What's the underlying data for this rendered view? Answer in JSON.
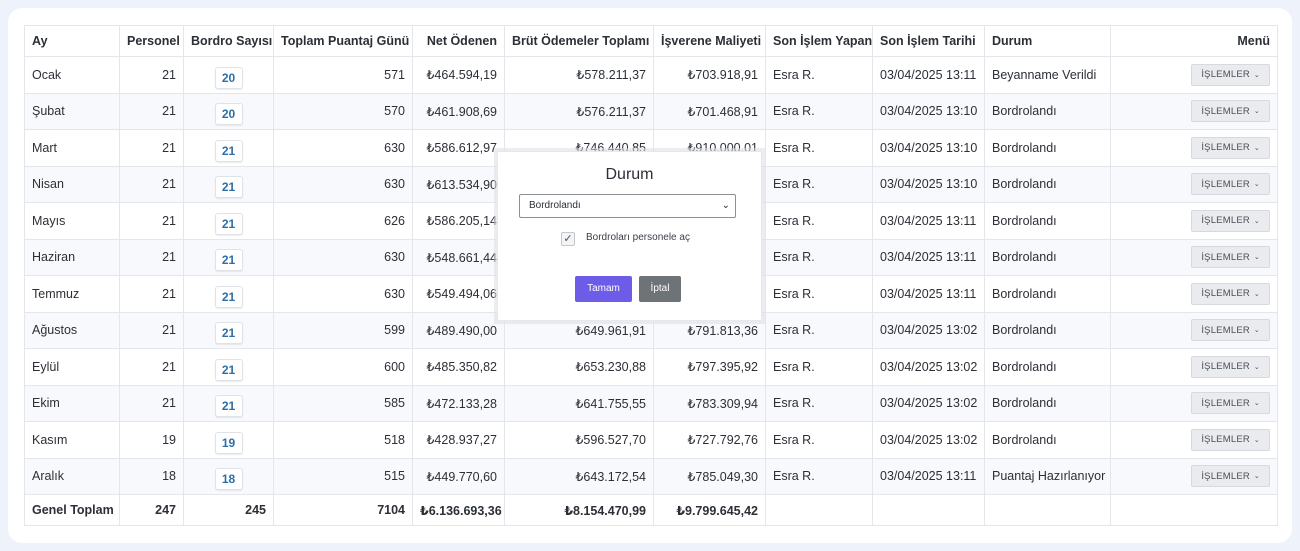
{
  "table": {
    "headers": {
      "month": "Ay",
      "staff": "Personel",
      "payroll_count": "Bordro Sayısı",
      "total_days": "Toplam Puantaj Günü",
      "net_paid": "Net Ödenen",
      "gross_total": "Brüt Ödemeler Toplamı",
      "employer_cost": "İşverene Maliyeti",
      "last_user": "Son İşlem Yapan",
      "last_date": "Son İşlem Tarihi",
      "status": "Durum",
      "menu": "Menü"
    },
    "rows": [
      {
        "month": "Ocak",
        "staff": "21",
        "payroll_count": "20",
        "total_days": "571",
        "net_paid": "₺464.594,19",
        "gross_total": "₺578.211,37",
        "employer_cost": "₺703.918,91",
        "last_user": "Esra R.",
        "last_date": "03/04/2025 13:11",
        "status": "Beyanname Verildi"
      },
      {
        "month": "Şubat",
        "staff": "21",
        "payroll_count": "20",
        "total_days": "570",
        "net_paid": "₺461.908,69",
        "gross_total": "₺576.211,37",
        "employer_cost": "₺701.468,91",
        "last_user": "Esra R.",
        "last_date": "03/04/2025 13:10",
        "status": "Bordrolandı"
      },
      {
        "month": "Mart",
        "staff": "21",
        "payroll_count": "21",
        "total_days": "630",
        "net_paid": "₺586.612,97",
        "gross_total": "₺746.440,85",
        "employer_cost": "₺910.000,01",
        "last_user": "Esra R.",
        "last_date": "03/04/2025 13:10",
        "status": "Bordrolandı"
      },
      {
        "month": "Nisan",
        "staff": "21",
        "payroll_count": "21",
        "total_days": "630",
        "net_paid": "₺613.534,90",
        "gross_total": "",
        "employer_cost": "",
        "last_user": "Esra R.",
        "last_date": "03/04/2025 13:10",
        "status": "Bordrolandı"
      },
      {
        "month": "Mayıs",
        "staff": "21",
        "payroll_count": "21",
        "total_days": "626",
        "net_paid": "₺586.205,14",
        "gross_total": "",
        "employer_cost": "",
        "last_user": "Esra R.",
        "last_date": "03/04/2025 13:11",
        "status": "Bordrolandı"
      },
      {
        "month": "Haziran",
        "staff": "21",
        "payroll_count": "21",
        "total_days": "630",
        "net_paid": "₺548.661,44",
        "gross_total": "",
        "employer_cost": "",
        "last_user": "Esra R.",
        "last_date": "03/04/2025 13:11",
        "status": "Bordrolandı"
      },
      {
        "month": "Temmuz",
        "staff": "21",
        "payroll_count": "21",
        "total_days": "630",
        "net_paid": "₺549.494,06",
        "gross_total": "",
        "employer_cost": "",
        "last_user": "Esra R.",
        "last_date": "03/04/2025 13:11",
        "status": "Bordrolandı"
      },
      {
        "month": "Ağustos",
        "staff": "21",
        "payroll_count": "21",
        "total_days": "599",
        "net_paid": "₺489.490,00",
        "gross_total": "₺649.961,91",
        "employer_cost": "₺791.813,36",
        "last_user": "Esra R.",
        "last_date": "03/04/2025 13:02",
        "status": "Bordrolandı"
      },
      {
        "month": "Eylül",
        "staff": "21",
        "payroll_count": "21",
        "total_days": "600",
        "net_paid": "₺485.350,82",
        "gross_total": "₺653.230,88",
        "employer_cost": "₺797.395,92",
        "last_user": "Esra R.",
        "last_date": "03/04/2025 13:02",
        "status": "Bordrolandı"
      },
      {
        "month": "Ekim",
        "staff": "21",
        "payroll_count": "21",
        "total_days": "585",
        "net_paid": "₺472.133,28",
        "gross_total": "₺641.755,55",
        "employer_cost": "₺783.309,94",
        "last_user": "Esra R.",
        "last_date": "03/04/2025 13:02",
        "status": "Bordrolandı"
      },
      {
        "month": "Kasım",
        "staff": "19",
        "payroll_count": "19",
        "total_days": "518",
        "net_paid": "₺428.937,27",
        "gross_total": "₺596.527,70",
        "employer_cost": "₺727.792,76",
        "last_user": "Esra R.",
        "last_date": "03/04/2025 13:02",
        "status": "Bordrolandı"
      },
      {
        "month": "Aralık",
        "staff": "18",
        "payroll_count": "18",
        "total_days": "515",
        "net_paid": "₺449.770,60",
        "gross_total": "₺643.172,54",
        "employer_cost": "₺785.049,30",
        "last_user": "Esra R.",
        "last_date": "03/04/2025 13:11",
        "status": "Puantaj Hazırlanıyor"
      }
    ],
    "row_menu_label": "İŞLEMLER",
    "totals": {
      "label": "Genel Toplam",
      "staff": "247",
      "payroll_count": "245",
      "total_days": "7104",
      "net_paid": "₺6.136.693,36",
      "gross_total": "₺8.154.470,99",
      "employer_cost": "₺9.799.645,42"
    }
  },
  "modal": {
    "title": "Durum",
    "selected_status": "Bordrolandı",
    "checkbox_label": "Bordroları personele aç",
    "checkbox_checked": true,
    "ok_label": "Tamam",
    "cancel_label": "İptal"
  },
  "colors": {
    "accent": "#6c5ce7",
    "cancel": "#6e7378",
    "badge_text": "#2c6fa8",
    "background": "#eef3fb"
  }
}
